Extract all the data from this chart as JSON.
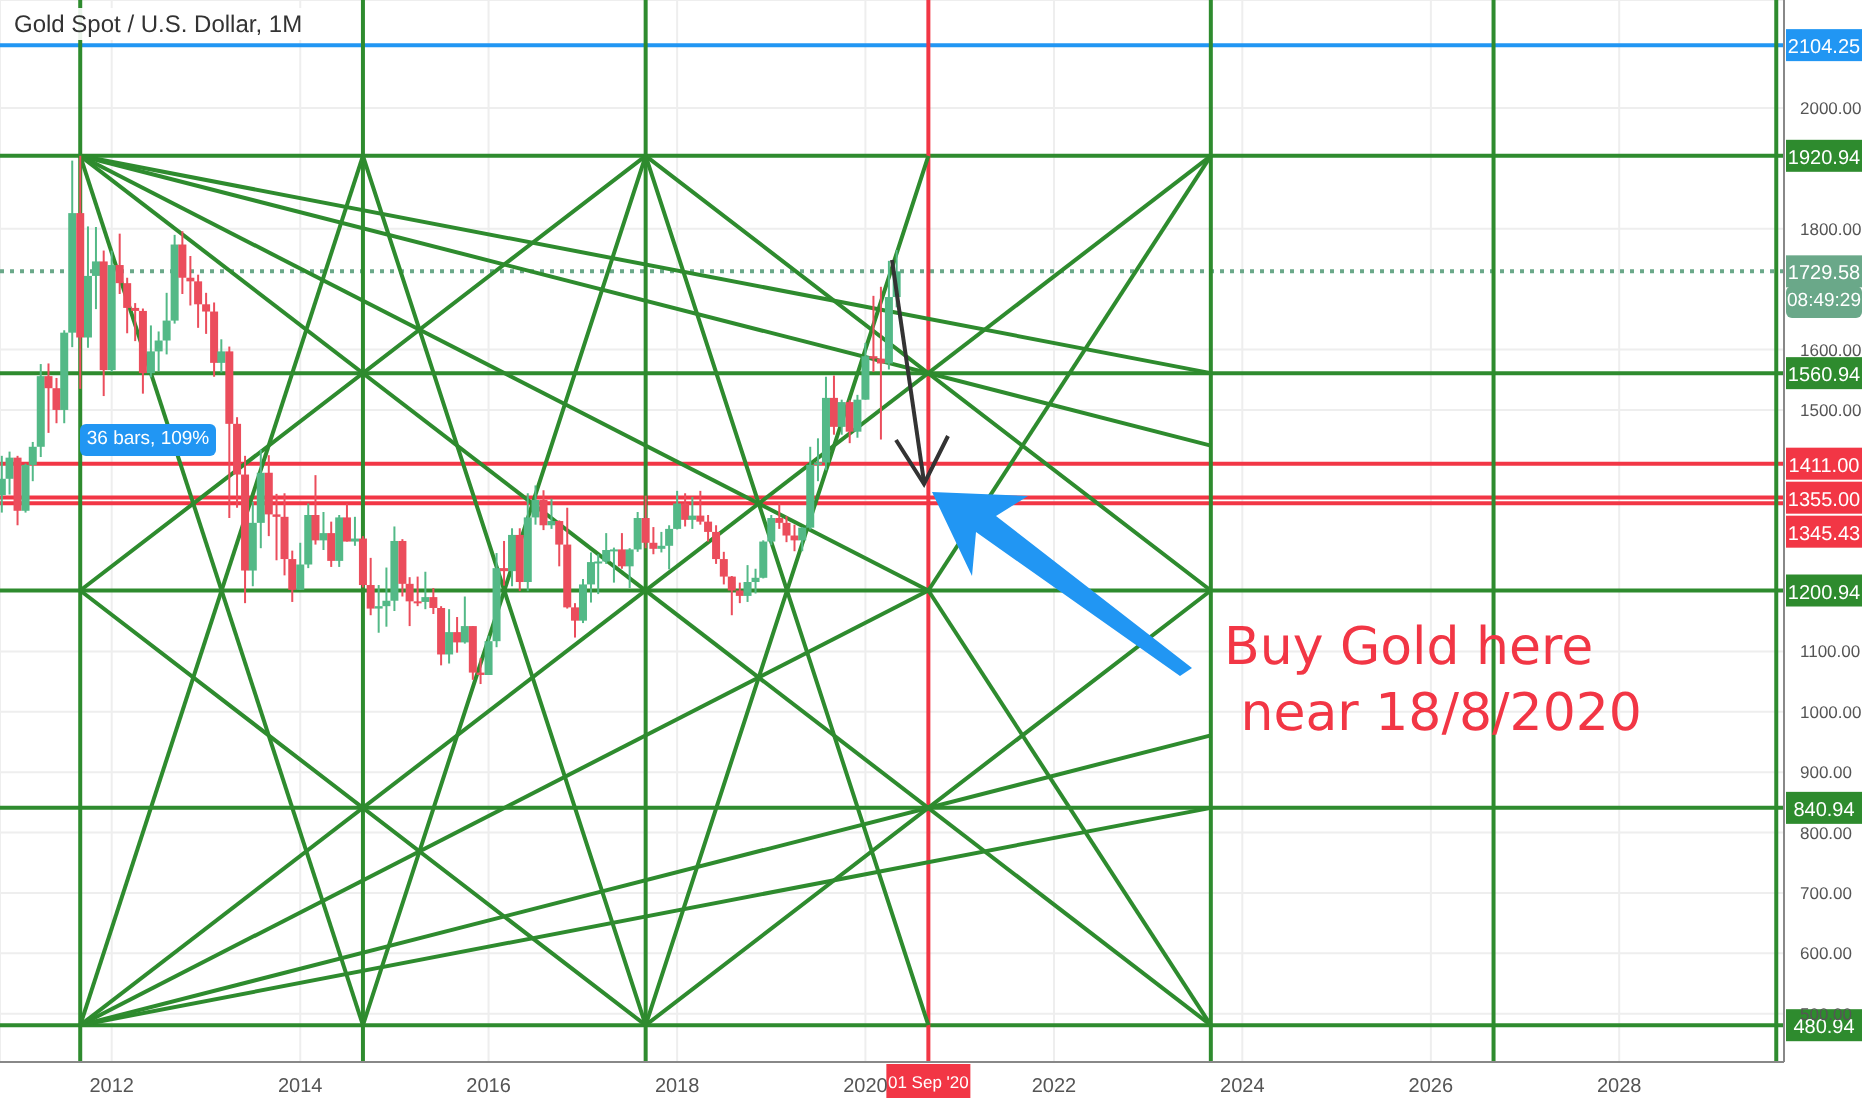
{
  "chart_data": {
    "type": "candlestick",
    "title": "Gold Spot / U.S. Dollar, 1M",
    "x": [
      "2010-11",
      "2010-12",
      "2011-01",
      "2011-02",
      "2011-03",
      "2011-04",
      "2011-05",
      "2011-06",
      "2011-07",
      "2011-08",
      "2011-09",
      "2011-10",
      "2011-11",
      "2011-12",
      "2012-01",
      "2012-02",
      "2012-03",
      "2012-04",
      "2012-05",
      "2012-06",
      "2012-07",
      "2012-08",
      "2012-09",
      "2012-10",
      "2012-11",
      "2012-12",
      "2013-01",
      "2013-02",
      "2013-03",
      "2013-04",
      "2013-05",
      "2013-06",
      "2013-07",
      "2013-08",
      "2013-09",
      "2013-10",
      "2013-11",
      "2013-12",
      "2014-01",
      "2014-02",
      "2014-03",
      "2014-04",
      "2014-05",
      "2014-06",
      "2014-07",
      "2014-08",
      "2014-09",
      "2014-10",
      "2014-11",
      "2014-12",
      "2015-01",
      "2015-02",
      "2015-03",
      "2015-04",
      "2015-05",
      "2015-06",
      "2015-07",
      "2015-08",
      "2015-09",
      "2015-10",
      "2015-11",
      "2015-12",
      "2016-01",
      "2016-02",
      "2016-03",
      "2016-04",
      "2016-05",
      "2016-06",
      "2016-07",
      "2016-08",
      "2016-09",
      "2016-10",
      "2016-11",
      "2016-12",
      "2017-01",
      "2017-02",
      "2017-03",
      "2017-04",
      "2017-05",
      "2017-06",
      "2017-07",
      "2017-08",
      "2017-09",
      "2017-10",
      "2017-11",
      "2017-12",
      "2018-01",
      "2018-02",
      "2018-03",
      "2018-04",
      "2018-05",
      "2018-06",
      "2018-07",
      "2018-08",
      "2018-09",
      "2018-10",
      "2018-11",
      "2018-12",
      "2019-01",
      "2019-02",
      "2019-03",
      "2019-04",
      "2019-05",
      "2019-06",
      "2019-07",
      "2019-08",
      "2019-09",
      "2019-10",
      "2019-11",
      "2019-12",
      "2020-01",
      "2020-02",
      "2020-03",
      "2020-04",
      "2020-05"
    ],
    "ohlc": [
      [
        1359,
        1424,
        1330,
        1386
      ],
      [
        1386,
        1431,
        1360,
        1421
      ],
      [
        1421,
        1424,
        1309,
        1333
      ],
      [
        1333,
        1411,
        1330,
        1409
      ],
      [
        1409,
        1447,
        1382,
        1439
      ],
      [
        1439,
        1576,
        1422,
        1556
      ],
      [
        1556,
        1577,
        1462,
        1536
      ],
      [
        1536,
        1553,
        1478,
        1500
      ],
      [
        1500,
        1632,
        1478,
        1628
      ],
      [
        1628,
        1913,
        1604,
        1826
      ],
      [
        1826,
        1921,
        1535,
        1620
      ],
      [
        1620,
        1804,
        1603,
        1722
      ],
      [
        1722,
        1803,
        1667,
        1746
      ],
      [
        1746,
        1764,
        1523,
        1566
      ],
      [
        1566,
        1764,
        1563,
        1740
      ],
      [
        1740,
        1792,
        1692,
        1710
      ],
      [
        1710,
        1719,
        1627,
        1669
      ],
      [
        1669,
        1677,
        1614,
        1664
      ],
      [
        1664,
        1668,
        1527,
        1561
      ],
      [
        1561,
        1640,
        1554,
        1597
      ],
      [
        1597,
        1630,
        1564,
        1615
      ],
      [
        1615,
        1694,
        1592,
        1648
      ],
      [
        1648,
        1790,
        1643,
        1774
      ],
      [
        1774,
        1796,
        1692,
        1719
      ],
      [
        1719,
        1755,
        1673,
        1713
      ],
      [
        1713,
        1724,
        1636,
        1675
      ],
      [
        1675,
        1694,
        1626,
        1663
      ],
      [
        1663,
        1678,
        1555,
        1578
      ],
      [
        1578,
        1617,
        1562,
        1597
      ],
      [
        1597,
        1605,
        1321,
        1477
      ],
      [
        1477,
        1488,
        1338,
        1393
      ],
      [
        1393,
        1424,
        1180,
        1234
      ],
      [
        1234,
        1348,
        1208,
        1313
      ],
      [
        1313,
        1434,
        1271,
        1396
      ],
      [
        1396,
        1425,
        1291,
        1327
      ],
      [
        1327,
        1361,
        1251,
        1323
      ],
      [
        1323,
        1362,
        1226,
        1253
      ],
      [
        1253,
        1267,
        1182,
        1202
      ],
      [
        1202,
        1280,
        1202,
        1244
      ],
      [
        1244,
        1345,
        1238,
        1326
      ],
      [
        1326,
        1392,
        1277,
        1284
      ],
      [
        1284,
        1331,
        1268,
        1296
      ],
      [
        1296,
        1315,
        1240,
        1250
      ],
      [
        1250,
        1326,
        1240,
        1322
      ],
      [
        1322,
        1345,
        1282,
        1282
      ],
      [
        1282,
        1323,
        1275,
        1287
      ],
      [
        1287,
        1291,
        1206,
        1210
      ],
      [
        1210,
        1255,
        1160,
        1171
      ],
      [
        1171,
        1210,
        1131,
        1175
      ],
      [
        1175,
        1239,
        1141,
        1184
      ],
      [
        1184,
        1307,
        1167,
        1283
      ],
      [
        1283,
        1286,
        1191,
        1212
      ],
      [
        1212,
        1223,
        1142,
        1183
      ],
      [
        1183,
        1224,
        1175,
        1182
      ],
      [
        1182,
        1232,
        1170,
        1190
      ],
      [
        1190,
        1205,
        1162,
        1172
      ],
      [
        1172,
        1175,
        1077,
        1095
      ],
      [
        1095,
        1170,
        1080,
        1132
      ],
      [
        1132,
        1157,
        1098,
        1115
      ],
      [
        1115,
        1191,
        1113,
        1142
      ],
      [
        1142,
        1142,
        1053,
        1065
      ],
      [
        1065,
        1089,
        1046,
        1061
      ],
      [
        1061,
        1126,
        1061,
        1117
      ],
      [
        1117,
        1263,
        1107,
        1238
      ],
      [
        1238,
        1283,
        1209,
        1233
      ],
      [
        1233,
        1304,
        1208,
        1293
      ],
      [
        1293,
        1304,
        1200,
        1215
      ],
      [
        1215,
        1362,
        1200,
        1322
      ],
      [
        1322,
        1375,
        1310,
        1351
      ],
      [
        1351,
        1367,
        1301,
        1309
      ],
      [
        1309,
        1353,
        1303,
        1316
      ],
      [
        1316,
        1317,
        1241,
        1277
      ],
      [
        1277,
        1338,
        1171,
        1173
      ],
      [
        1173,
        1180,
        1123,
        1151
      ],
      [
        1151,
        1220,
        1147,
        1211
      ],
      [
        1211,
        1264,
        1181,
        1248
      ],
      [
        1248,
        1261,
        1195,
        1249
      ],
      [
        1249,
        1296,
        1245,
        1268
      ],
      [
        1268,
        1272,
        1214,
        1269
      ],
      [
        1269,
        1296,
        1237,
        1241
      ],
      [
        1241,
        1271,
        1205,
        1269
      ],
      [
        1269,
        1331,
        1265,
        1321
      ],
      [
        1321,
        1358,
        1271,
        1280
      ],
      [
        1280,
        1306,
        1261,
        1270
      ],
      [
        1270,
        1298,
        1264,
        1275
      ],
      [
        1275,
        1309,
        1236,
        1303
      ],
      [
        1303,
        1366,
        1302,
        1345
      ],
      [
        1345,
        1362,
        1307,
        1318
      ],
      [
        1318,
        1356,
        1303,
        1325
      ],
      [
        1325,
        1366,
        1310,
        1315
      ],
      [
        1315,
        1326,
        1282,
        1298
      ],
      [
        1298,
        1309,
        1245,
        1253
      ],
      [
        1253,
        1265,
        1211,
        1224
      ],
      [
        1224,
        1225,
        1160,
        1201
      ],
      [
        1201,
        1214,
        1180,
        1192
      ],
      [
        1192,
        1243,
        1182,
        1215
      ],
      [
        1215,
        1237,
        1196,
        1222
      ],
      [
        1222,
        1284,
        1221,
        1282
      ],
      [
        1282,
        1326,
        1276,
        1321
      ],
      [
        1321,
        1346,
        1303,
        1313
      ],
      [
        1313,
        1324,
        1281,
        1292
      ],
      [
        1292,
        1310,
        1266,
        1284
      ],
      [
        1284,
        1306,
        1266,
        1305
      ],
      [
        1305,
        1439,
        1302,
        1409
      ],
      [
        1409,
        1453,
        1382,
        1413
      ],
      [
        1413,
        1555,
        1400,
        1520
      ],
      [
        1520,
        1557,
        1459,
        1472
      ],
      [
        1472,
        1517,
        1459,
        1513
      ],
      [
        1513,
        1516,
        1445,
        1464
      ],
      [
        1464,
        1525,
        1454,
        1517
      ],
      [
        1517,
        1611,
        1517,
        1589
      ],
      [
        1589,
        1689,
        1563,
        1585
      ],
      [
        1585,
        1704,
        1451,
        1577
      ],
      [
        1577,
        1747,
        1567,
        1687
      ],
      [
        1687,
        1765,
        1670,
        1729.58
      ]
    ],
    "colors": [
      "#53b987",
      "#53b987",
      "#eb4d5c",
      "#53b987",
      "#53b987",
      "#53b987",
      "#eb4d5c",
      "#eb4d5c",
      "#53b987",
      "#53b987",
      "#eb4d5c",
      "#53b987",
      "#53b987",
      "#eb4d5c",
      "#53b987",
      "#eb4d5c",
      "#eb4d5c",
      "#eb4d5c",
      "#eb4d5c",
      "#53b987",
      "#53b987",
      "#53b987",
      "#53b987",
      "#eb4d5c",
      "#eb4d5c",
      "#eb4d5c",
      "#eb4d5c",
      "#eb4d5c",
      "#53b987",
      "#eb4d5c",
      "#eb4d5c",
      "#eb4d5c",
      "#53b987",
      "#53b987",
      "#eb4d5c",
      "#eb4d5c",
      "#eb4d5c",
      "#eb4d5c",
      "#53b987",
      "#53b987",
      "#eb4d5c",
      "#53b987",
      "#eb4d5c",
      "#53b987",
      "#eb4d5c",
      "#53b987",
      "#eb4d5c",
      "#eb4d5c",
      "#53b987",
      "#53b987",
      "#53b987",
      "#eb4d5c",
      "#eb4d5c",
      "#eb4d5c",
      "#53b987",
      "#eb4d5c",
      "#eb4d5c",
      "#53b987",
      "#eb4d5c",
      "#53b987",
      "#eb4d5c",
      "#eb4d5c",
      "#53b987",
      "#53b987",
      "#eb4d5c",
      "#53b987",
      "#eb4d5c",
      "#53b987",
      "#53b987",
      "#eb4d5c",
      "#53b987",
      "#eb4d5c",
      "#eb4d5c",
      "#eb4d5c",
      "#53b987",
      "#53b987",
      "#53b987",
      "#53b987",
      "#53b987",
      "#eb4d5c",
      "#53b987",
      "#53b987",
      "#eb4d5c",
      "#eb4d5c",
      "#53b987",
      "#53b987",
      "#53b987",
      "#eb4d5c",
      "#53b987",
      "#eb4d5c",
      "#eb4d5c",
      "#eb4d5c",
      "#eb4d5c",
      "#eb4d5c",
      "#eb4d5c",
      "#53b987",
      "#53b987",
      "#53b987",
      "#53b987",
      "#eb4d5c",
      "#eb4d5c",
      "#eb4d5c",
      "#53b987",
      "#53b987",
      "#53b987",
      "#53b987",
      "#eb4d5c",
      "#53b987",
      "#eb4d5c",
      "#53b987",
      "#53b987",
      "#eb4d5c",
      "#eb4d5c",
      "#53b987",
      "#53b987"
    ],
    "series": [
      {
        "type": "line",
        "x": [
          "2011-09",
          "2023-09"
        ],
        "values": [
          1920.94,
          1560.94
        ],
        "color": "#2e8b2e"
      },
      {
        "type": "line",
        "x": [
          "2011-09",
          "2023-09"
        ],
        "values": [
          1920.94,
          1440.94
        ],
        "color": "#2e8b2e"
      },
      {
        "type": "line",
        "x": [
          "2011-09",
          "2020-09"
        ],
        "values": [
          1920.94,
          1200.94
        ],
        "color": "#2e8b2e"
      },
      {
        "type": "line",
        "x": [
          "2011-09",
          "2023-09"
        ],
        "values": [
          1920.94,
          480.94
        ],
        "color": "#2e8b2e"
      },
      {
        "type": "line",
        "x": [
          "2011-09",
          "2014-09"
        ],
        "values": [
          1920.94,
          480.94
        ],
        "color": "#2e8b2e"
      },
      {
        "type": "line",
        "x": [
          "2011-09",
          "2023-09"
        ],
        "values": [
          480.94,
          840.94
        ],
        "color": "#2e8b2e"
      },
      {
        "type": "line",
        "x": [
          "2011-09",
          "2023-09"
        ],
        "values": [
          480.94,
          960.94
        ],
        "color": "#2e8b2e"
      },
      {
        "type": "line",
        "x": [
          "2011-09",
          "2020-09"
        ],
        "values": [
          480.94,
          1200.94
        ],
        "color": "#2e8b2e"
      },
      {
        "type": "line",
        "x": [
          "2011-09",
          "2023-09"
        ],
        "values": [
          480.94,
          1920.94
        ],
        "color": "#2e8b2e"
      },
      {
        "type": "line",
        "x": [
          "2011-09",
          "2014-09"
        ],
        "values": [
          480.94,
          1920.94
        ],
        "color": "#2e8b2e"
      },
      {
        "type": "line",
        "x": [
          "2011-09",
          "2017-09",
          "2023-09"
        ],
        "values": [
          1200.94,
          1920.94,
          1200.94
        ],
        "color": "#2e8b2e"
      },
      {
        "type": "line",
        "x": [
          "2011-09",
          "2017-09",
          "2023-09"
        ],
        "values": [
          1200.94,
          480.94,
          1200.94
        ],
        "color": "#2e8b2e"
      },
      {
        "type": "line",
        "x": [
          "2014-09",
          "2017-09",
          "2020-09"
        ],
        "values": [
          480.94,
          1920.94,
          480.94
        ],
        "color": "#2e8b2e"
      },
      {
        "type": "line",
        "x": [
          "2014-09",
          "2017-09",
          "2020-09"
        ],
        "values": [
          1920.94,
          480.94,
          1920.94
        ],
        "color": "#2e8b2e"
      },
      {
        "type": "line",
        "x": [
          "2020-09",
          "2023-09"
        ],
        "values": [
          1200.94,
          1920.94
        ],
        "color": "#2e8b2e"
      },
      {
        "type": "line",
        "x": [
          "2020-09",
          "2023-09"
        ],
        "values": [
          1200.94,
          480.94
        ],
        "color": "#2e8b2e"
      }
    ],
    "ref_lines": [
      {
        "axis": "y",
        "value": 2104.25,
        "label": "2104.25",
        "color": "#2196f3"
      },
      {
        "axis": "y",
        "value": 1920.94,
        "label": "1920.94",
        "color": "#2e8b2e"
      },
      {
        "axis": "y",
        "value": 1729.58,
        "label": "1729.58",
        "color": "#6aa889",
        "line_style": "dotted"
      },
      {
        "axis": "y",
        "value": 1560.94,
        "label": "1560.94",
        "color": "#2e8b2e"
      },
      {
        "axis": "y",
        "value": 1411.0,
        "label": "1411.00",
        "color": "#f23645"
      },
      {
        "axis": "y",
        "value": 1355.0,
        "label": "1355.00",
        "color": "#f23645"
      },
      {
        "axis": "y",
        "value": 1345.43,
        "label": "1345.43",
        "color": "#f23645"
      },
      {
        "axis": "y",
        "value": 1200.94,
        "label": "1200.94",
        "color": "#2e8b2e"
      },
      {
        "axis": "y",
        "value": 840.94,
        "label": "840.94",
        "color": "#2e8b2e"
      },
      {
        "axis": "y",
        "value": 480.94,
        "label": "480.94",
        "color": "#2e8b2e"
      },
      {
        "axis": "x",
        "value": "2011-09",
        "label": null,
        "color": "#2e8b2e"
      },
      {
        "axis": "x",
        "value": "2014-09",
        "label": null,
        "color": "#2e8b2e"
      },
      {
        "axis": "x",
        "value": "2017-09",
        "label": null,
        "color": "#2e8b2e"
      },
      {
        "axis": "x",
        "value": "2020-09-01",
        "label": "01 Sep '20",
        "color": "#f23645"
      },
      {
        "axis": "x",
        "value": "2023-09",
        "label": null,
        "color": "#2e8b2e"
      },
      {
        "axis": "x",
        "value": "2026-09",
        "label": null,
        "color": "#2e8b2e"
      },
      {
        "axis": "x",
        "value": "2029-09",
        "label": null,
        "color": "#2e8b2e"
      }
    ],
    "annotations": [
      "36 bars, 109%",
      "Buy Gold here\n near 18/8/2020",
      "08:49:29"
    ],
    "xlim": [
      "2010-10-25",
      "2029-10-01"
    ],
    "xticks": [
      "2012",
      "2014",
      "2016",
      "2018",
      "2020",
      "2022",
      "2024",
      "2026",
      "2028"
    ],
    "ylim": [
      420,
      2179
    ],
    "yticks": [
      {
        "value": 500,
        "label": "500.00"
      },
      {
        "value": 600,
        "label": "600.00"
      },
      {
        "value": 700,
        "label": "700.00"
      },
      {
        "value": 800,
        "label": "800.00"
      },
      {
        "value": 900,
        "label": "900.00"
      },
      {
        "value": 1000,
        "label": "1000.00"
      },
      {
        "value": 1100,
        "label": "1100.00"
      },
      {
        "value": 1500,
        "label": "1500.00"
      },
      {
        "value": 1600,
        "label": "1600.00"
      },
      {
        "value": 1800,
        "label": "1800.00"
      },
      {
        "value": 2000,
        "label": "2000.00"
      }
    ],
    "grid": true
  }
}
